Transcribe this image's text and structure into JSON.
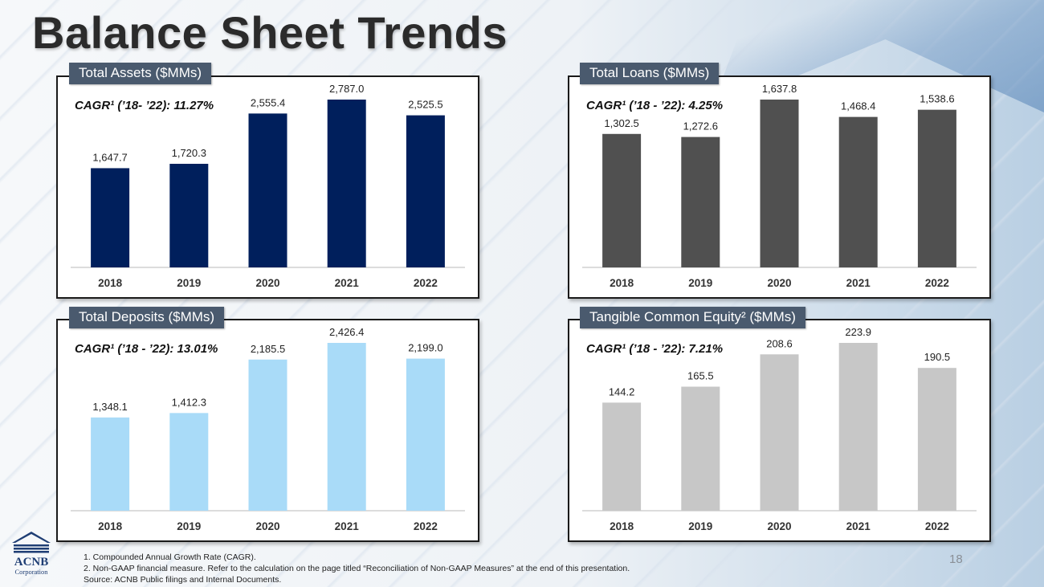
{
  "title": "Balance Sheet Trends",
  "page_number": "18",
  "logo": {
    "name": "ACNB",
    "subtitle": "Corporation"
  },
  "footnotes": [
    "1.  Compounded Annual Growth Rate (CAGR).",
    "2.  Non-GAAP financial measure.  Refer to the calculation on the page titled “Reconciliation of Non-GAAP Measures” at the end of this presentation.",
    "Source:  ACNB Public filings and Internal Documents."
  ],
  "chart_data": [
    {
      "type": "bar",
      "title": "Total Assets ($MMs)",
      "cagr": "CAGR¹ (’18- ’22): 11.27%",
      "categories": [
        "2018",
        "2019",
        "2020",
        "2021",
        "2022"
      ],
      "values": [
        1647.7,
        1720.3,
        2555.4,
        2787.0,
        2525.5
      ],
      "labels": [
        "1,647.7",
        "1,720.3",
        "2,555.4",
        "2,787.0",
        "2,525.5"
      ],
      "color": "#001f5c",
      "ylim": [
        0,
        2787.0
      ]
    },
    {
      "type": "bar",
      "title": "Total Loans ($MMs)",
      "cagr": "CAGR¹ (’18 - ’22): 4.25%",
      "categories": [
        "2018",
        "2019",
        "2020",
        "2021",
        "2022"
      ],
      "values": [
        1302.5,
        1272.6,
        1637.8,
        1468.4,
        1538.6
      ],
      "labels": [
        "1,302.5",
        "1,272.6",
        "1,637.8",
        "1,468.4",
        "1,538.6"
      ],
      "color": "#505050",
      "ylim": [
        0,
        1637.8
      ]
    },
    {
      "type": "bar",
      "title": "Total Deposits ($MMs)",
      "cagr": "CAGR¹ (’18 - ’22): 13.01%",
      "categories": [
        "2018",
        "2019",
        "2020",
        "2021",
        "2022"
      ],
      "values": [
        1348.1,
        1412.3,
        2185.5,
        2426.4,
        2199.0
      ],
      "labels": [
        "1,348.1",
        "1,412.3",
        "2,185.5",
        "2,426.4",
        "2,199.0"
      ],
      "color": "#a9dbf8",
      "ylim": [
        0,
        2426.4
      ]
    },
    {
      "type": "bar",
      "title": "Tangible Common Equity² ($MMs)",
      "cagr": "CAGR¹ (’18 - ’22): 7.21%",
      "categories": [
        "2018",
        "2019",
        "2020",
        "2021",
        "2022"
      ],
      "values": [
        144.2,
        165.5,
        208.6,
        223.9,
        190.5
      ],
      "labels": [
        "144.2",
        "165.5",
        "208.6",
        "223.9",
        "190.5"
      ],
      "color": "#c7c7c7",
      "ylim": [
        0,
        223.9
      ]
    }
  ]
}
